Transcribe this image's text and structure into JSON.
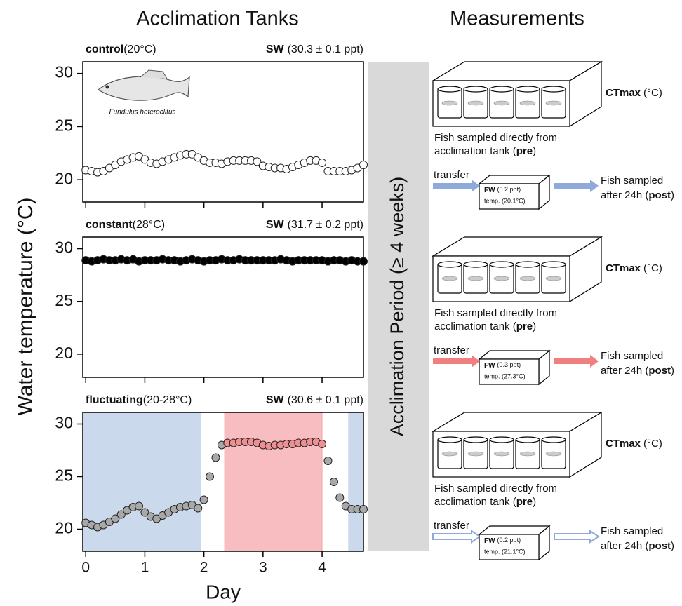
{
  "headings": {
    "left": "Acclimation Tanks",
    "right": "Measurements"
  },
  "y_label": "Water temperature (°C)",
  "x_label": "Day",
  "period_label": "Acclimation Period (≥ 4 weeks)",
  "chart_data": [
    {
      "type": "scatter",
      "title": "control",
      "subtitle": "(20°C)",
      "salinity": "SW",
      "salinity_detail": "(30.3 ± 0.1 ppt)",
      "annotation": "Fundulus heteroclitus",
      "x": [
        0,
        0.1,
        0.2,
        0.3,
        0.4,
        0.5,
        0.6,
        0.7,
        0.8,
        0.9,
        1,
        1.1,
        1.2,
        1.3,
        1.4,
        1.5,
        1.6,
        1.7,
        1.8,
        1.9,
        2,
        2.1,
        2.2,
        2.3,
        2.4,
        2.5,
        2.6,
        2.7,
        2.8,
        2.9,
        3,
        3.1,
        3.2,
        3.3,
        3.4,
        3.5,
        3.6,
        3.7,
        3.8,
        3.9,
        4,
        4.1,
        4.2,
        4.3,
        4.4,
        4.5,
        4.6,
        4.7
      ],
      "series": [
        {
          "color": "#ffffff",
          "values": [
            20.9,
            20.8,
            20.7,
            20.8,
            21.1,
            21.4,
            21.7,
            21.9,
            22.1,
            22.2,
            21.9,
            21.6,
            21.5,
            21.7,
            21.9,
            22.1,
            22.3,
            22.4,
            22.4,
            22.1,
            21.8,
            21.6,
            21.6,
            21.5,
            21.7,
            21.8,
            21.8,
            21.8,
            21.8,
            21.7,
            21.3,
            21.2,
            21.1,
            21.1,
            21.0,
            21.2,
            21.4,
            21.6,
            21.8,
            21.8,
            21.6,
            20.8,
            20.8,
            20.8,
            20.8,
            20.9,
            21.1,
            21.4
          ]
        }
      ],
      "xlim": [
        -0.05,
        4.7
      ],
      "ylim": [
        17.9,
        31.1
      ],
      "xticks": [
        0,
        1,
        2,
        3,
        4
      ],
      "yticks": [
        20,
        25,
        30
      ]
    },
    {
      "type": "scatter",
      "title": "constant",
      "subtitle": "(28°C)",
      "salinity": "SW",
      "salinity_detail": "(31.7 ± 0.2 ppt)",
      "x": [
        0,
        0.1,
        0.2,
        0.3,
        0.4,
        0.5,
        0.6,
        0.7,
        0.8,
        0.9,
        1,
        1.1,
        1.2,
        1.3,
        1.4,
        1.5,
        1.6,
        1.7,
        1.8,
        1.9,
        2,
        2.1,
        2.2,
        2.3,
        2.4,
        2.5,
        2.6,
        2.7,
        2.8,
        2.9,
        3,
        3.1,
        3.2,
        3.3,
        3.4,
        3.5,
        3.6,
        3.7,
        3.8,
        3.9,
        4,
        4.1,
        4.2,
        4.3,
        4.4,
        4.5,
        4.6,
        4.7
      ],
      "series": [
        {
          "color": "#000000",
          "values": [
            28.9,
            28.8,
            28.9,
            29.0,
            28.9,
            28.9,
            29.0,
            28.9,
            29.0,
            28.8,
            28.9,
            28.9,
            28.9,
            29.0,
            28.9,
            28.9,
            28.8,
            28.9,
            29.0,
            28.9,
            28.8,
            28.9,
            28.9,
            29.0,
            28.9,
            28.9,
            29.0,
            28.9,
            28.9,
            28.9,
            28.9,
            28.9,
            28.9,
            29.0,
            28.9,
            28.8,
            28.9,
            28.9,
            28.9,
            28.9,
            28.9,
            28.8,
            28.9,
            28.9,
            28.8,
            28.9,
            28.8,
            28.8
          ]
        }
      ],
      "xlim": [
        -0.05,
        4.7
      ],
      "ylim": [
        17.8,
        31.1
      ],
      "xticks": [
        0,
        1,
        2,
        3,
        4
      ],
      "yticks": [
        20,
        25,
        30
      ]
    },
    {
      "type": "scatter",
      "title": "fluctuating",
      "subtitle": "(20-28°C)",
      "salinity": "SW",
      "salinity_detail": "(30.6 ± 0.1 ppt)",
      "x": [
        0,
        0.1,
        0.2,
        0.3,
        0.4,
        0.5,
        0.6,
        0.7,
        0.8,
        0.9,
        1,
        1.1,
        1.2,
        1.3,
        1.4,
        1.5,
        1.6,
        1.7,
        1.8,
        1.9,
        2,
        2.1,
        2.2,
        2.3,
        2.4,
        2.5,
        2.6,
        2.7,
        2.8,
        2.9,
        3,
        3.1,
        3.2,
        3.3,
        3.4,
        3.5,
        3.6,
        3.7,
        3.8,
        3.9,
        4,
        4.1,
        4.2,
        4.3,
        4.4,
        4.5,
        4.6,
        4.7
      ],
      "series": [
        {
          "color": "#a8a8a8",
          "values": [
            20.6,
            20.4,
            20.2,
            20.4,
            20.7,
            21.0,
            21.4,
            21.8,
            22.1,
            22.2,
            21.6,
            21.2,
            21.0,
            21.3,
            21.6,
            21.9,
            22.1,
            22.2,
            22.3,
            22.0,
            22.8,
            25.0,
            26.8,
            28.0,
            28.2,
            28.2,
            28.3,
            28.3,
            28.3,
            28.2,
            28.0,
            27.9,
            28.0,
            28.0,
            28.1,
            28.1,
            28.2,
            28.2,
            28.3,
            28.3,
            28.1,
            26.5,
            24.5,
            23.0,
            22.2,
            21.9,
            21.9,
            21.9
          ]
        }
      ],
      "shaded": [
        {
          "start": -0.05,
          "end": 1.95,
          "color": "#b9cce6"
        },
        {
          "start": 2.35,
          "end": 4.0,
          "color": "#f6a7ab"
        },
        {
          "start": 4.45,
          "end": 4.7,
          "color": "#b9cce6"
        }
      ],
      "xlim": [
        -0.05,
        4.7
      ],
      "ylim": [
        17.9,
        31.1
      ],
      "xticks": [
        0,
        1,
        2,
        3,
        4
      ],
      "yticks": [
        20,
        25,
        30
      ]
    }
  ],
  "measurements": [
    {
      "ctmax": "CTmax",
      "ctmax_unit": "(°C)",
      "pre_line1": "Fish sampled directly from",
      "pre_line2": "acclimation tank (",
      "pre_tag": "pre",
      "pre_close": ")",
      "transfer": "transfer",
      "fw": "FW",
      "fw_detail": "(0.2 ppt)",
      "temp": "temp. (20.1°C)",
      "arrow_color": "#8eaadb",
      "arrow_style": "solid",
      "post_line1": "Fish sampled",
      "post_line2": "after 24h (",
      "post_tag": "post",
      "post_close": ")"
    },
    {
      "ctmax": "CTmax",
      "ctmax_unit": "(°C)",
      "pre_line1": "Fish sampled directly from",
      "pre_line2": "acclimation tank (",
      "pre_tag": "pre",
      "pre_close": ")",
      "transfer": "transfer",
      "fw": "FW",
      "fw_detail": "(0.3 ppt)",
      "temp": "temp. (27.3°C)",
      "arrow_color": "#f08080",
      "arrow_style": "solid",
      "post_line1": "Fish sampled",
      "post_line2": "after 24h (",
      "post_tag": "post",
      "post_close": ")"
    },
    {
      "ctmax": "CTmax",
      "ctmax_unit": "(°C)",
      "pre_line1": "Fish sampled directly from",
      "pre_line2": "acclimation tank (",
      "pre_tag": "pre",
      "pre_close": ")",
      "transfer": "transfer",
      "fw": "FW",
      "fw_detail": "(0.2 ppt)",
      "temp": "temp. (21.1°C)",
      "arrow_color": "#8eaadb",
      "arrow_style": "hollow",
      "post_line1": "Fish sampled",
      "post_line2": "after 24h (",
      "post_tag": "post",
      "post_close": ")"
    }
  ]
}
